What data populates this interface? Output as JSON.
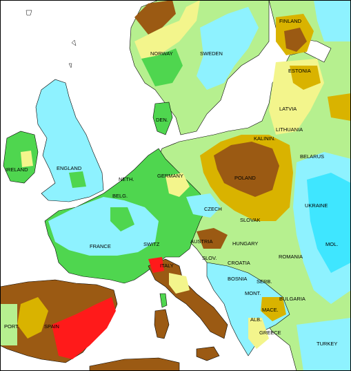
{
  "map": {
    "colors": {
      "sea": "#ffffff",
      "very_wet": "#3fe6ff",
      "wet": "#8ef2ff",
      "moderately_wet": "#4fd64f",
      "slightly_wet": "#b6f08f",
      "near_normal": "#f3f58c",
      "slightly_dry": "#d9b300",
      "moderately_dry": "#9b5a13",
      "very_dry": "#ff1a1a",
      "coast": "#000000"
    },
    "country_labels": [
      {
        "name": "FINLAND"
      },
      {
        "name": "NORWAY"
      },
      {
        "name": "SWEDEN"
      },
      {
        "name": "ESTONIA"
      },
      {
        "name": "LATVIA"
      },
      {
        "name": "LITHUANIA"
      },
      {
        "name": "DEN."
      },
      {
        "name": "BELARUS"
      },
      {
        "name": "IRELAND"
      },
      {
        "name": "ENGLAND"
      },
      {
        "name": "GERMANY"
      },
      {
        "name": "POLAND"
      },
      {
        "name": "NETH."
      },
      {
        "name": "BELG."
      },
      {
        "name": "CZECH"
      },
      {
        "name": "UKRAINE"
      },
      {
        "name": "SLOVAK"
      },
      {
        "name": "FRANCE"
      },
      {
        "name": "SWITZ"
      },
      {
        "name": "AUSTRIA"
      },
      {
        "name": "HUNGARY"
      },
      {
        "name": "MOL."
      },
      {
        "name": "ROMANIA"
      },
      {
        "name": "SLOV."
      },
      {
        "name": "CROATIA"
      },
      {
        "name": "ITALY"
      },
      {
        "name": "BOSNIA"
      },
      {
        "name": "SERB."
      },
      {
        "name": "MONT."
      },
      {
        "name": "BULGARIA"
      },
      {
        "name": "MACE."
      },
      {
        "name": "ALB."
      },
      {
        "name": "PORT."
      },
      {
        "name": "SPAIN"
      },
      {
        "name": "GREECE"
      },
      {
        "name": "TURKEY"
      },
      {
        "name": "KALININ."
      }
    ]
  }
}
